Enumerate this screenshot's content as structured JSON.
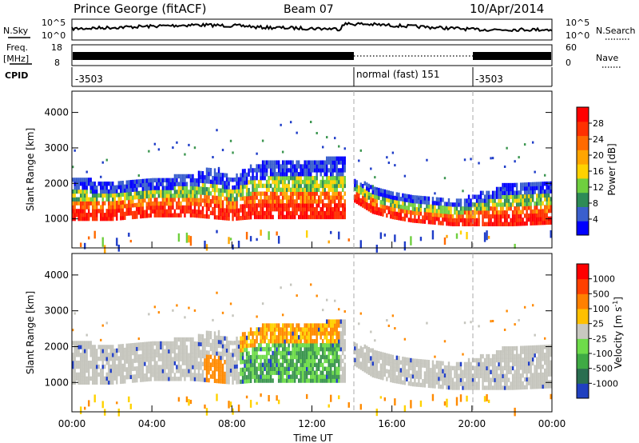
{
  "header": {
    "station": "Prince George (fitACF)",
    "beam": "Beam 07",
    "date": "10/Apr/2014"
  },
  "top_panel": {
    "left_label": "N.Sky",
    "left_ticks": [
      "10^5",
      "10^0"
    ],
    "right_label": "N.Search",
    "right_ticks": [
      "10^5",
      "10^0"
    ]
  },
  "freq_panel": {
    "left_label_1": "Freq.",
    "left_label_2": "[MHz]",
    "left_ticks": [
      "18",
      "8"
    ],
    "right_label": "Nave",
    "right_ticks": [
      "60",
      "0"
    ]
  },
  "cpid_panel": {
    "label": "CPID",
    "segments": [
      {
        "start_hour": 0,
        "end_hour": 14,
        "label": "-3503"
      },
      {
        "start_hour": 14,
        "end_hour": 20,
        "label": "normal (fast) 151"
      },
      {
        "start_hour": 20,
        "end_hour": 24,
        "label": "-3503"
      }
    ]
  },
  "chart_data": [
    {
      "type": "heatmap",
      "panel": "power",
      "ylabel": "Slant Range [km]",
      "ylim": [
        180,
        4600
      ],
      "yticks": [
        1000,
        2000,
        3000,
        4000
      ],
      "xlim": [
        0,
        24
      ],
      "colorbar": {
        "label": "Power [dB]",
        "ticks": [
          "4",
          "8",
          "12",
          "16",
          "20",
          "24",
          "28"
        ],
        "colors": [
          "#0000ff",
          "#3a5fcd",
          "#2e8b57",
          "#6fcf3f",
          "#ffd200",
          "#ffa500",
          "#ff6a00",
          "#ff3000",
          "#ff0000"
        ]
      },
      "echo_bands": [
        {
          "hours": [
            0,
            2,
            4,
            6,
            7,
            8,
            9,
            10,
            12,
            13.3
          ],
          "range_low": [
            950,
            950,
            1050,
            1050,
            1000,
            950,
            1000,
            1000,
            1000,
            1000
          ],
          "range_high": [
            2100,
            2000,
            2100,
            2200,
            2400,
            2100,
            2500,
            2600,
            2600,
            2700
          ]
        },
        {
          "hours": [
            14,
            15,
            16,
            17,
            18,
            19,
            20,
            22,
            24
          ],
          "range_low": [
            1500,
            1150,
            1000,
            900,
            850,
            800,
            800,
            800,
            850
          ],
          "range_high": [
            2100,
            1900,
            1700,
            1600,
            1550,
            1450,
            1600,
            2000,
            2000
          ]
        }
      ]
    },
    {
      "type": "heatmap",
      "panel": "velocity",
      "ylabel": "Slant Range [km]",
      "xlabel": "Time UT",
      "ylim": [
        180,
        4600
      ],
      "yticks": [
        1000,
        2000,
        3000,
        4000
      ],
      "xlim": [
        0,
        24
      ],
      "xticks": [
        "00:00",
        "04:00",
        "08:00",
        "12:00",
        "16:00",
        "20:00",
        "00:00"
      ],
      "colorbar": {
        "label": "Velocity [m s",
        "label_superscript": "-1",
        "label_close": "]",
        "ticks": [
          "1000",
          "500",
          "100",
          "25",
          "-25",
          "-100",
          "-500",
          "-1000"
        ],
        "colors": [
          "#2040c0",
          "#2a6e50",
          "#3faa44",
          "#6edc4a",
          "#c8c8c0",
          "#ffc000",
          "#ff8000",
          "#ff4000",
          "#ff0000"
        ]
      }
    }
  ],
  "colors": {
    "gray": "#c5c5bd",
    "blue": "#1e3cc8",
    "green": "#3c9650",
    "lightgreen": "#6edc4a",
    "orange": "#ff8a00",
    "red": "#ff1e00",
    "yellow": "#ffd200"
  }
}
